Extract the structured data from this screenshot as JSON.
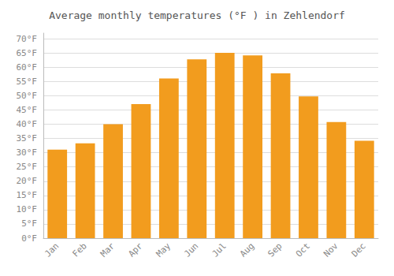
{
  "chart_data": {
    "type": "bar",
    "title": "Average monthly temperatures (°F ) in Zehlendorf",
    "categories": [
      "Jan",
      "Feb",
      "Mar",
      "Apr",
      "May",
      "Jun",
      "Jul",
      "Aug",
      "Sep",
      "Oct",
      "Nov",
      "Dec"
    ],
    "values": [
      31.1,
      33.3,
      40.0,
      47.1,
      56.1,
      62.8,
      65.1,
      64.2,
      57.9,
      49.8,
      40.8,
      34.2
    ],
    "color": "#F29C1E",
    "ylim": [
      0,
      72
    ],
    "yticks": [
      {
        "value": 0,
        "label": "0°F"
      },
      {
        "value": 5,
        "label": "5°F"
      },
      {
        "value": 10,
        "label": "10°F"
      },
      {
        "value": 15,
        "label": "15°F"
      },
      {
        "value": 20,
        "label": "20°F"
      },
      {
        "value": 25,
        "label": "25°F"
      },
      {
        "value": 30,
        "label": "30°F"
      },
      {
        "value": 35,
        "label": "35°F"
      },
      {
        "value": 40,
        "label": "40°F"
      },
      {
        "value": 45,
        "label": "45°F"
      },
      {
        "value": 50,
        "label": "50°F"
      },
      {
        "value": 55,
        "label": "55°F"
      },
      {
        "value": 60,
        "label": "60°F"
      },
      {
        "value": 65,
        "label": "65°F"
      },
      {
        "value": 70,
        "label": "70°F"
      }
    ],
    "grid": true
  }
}
